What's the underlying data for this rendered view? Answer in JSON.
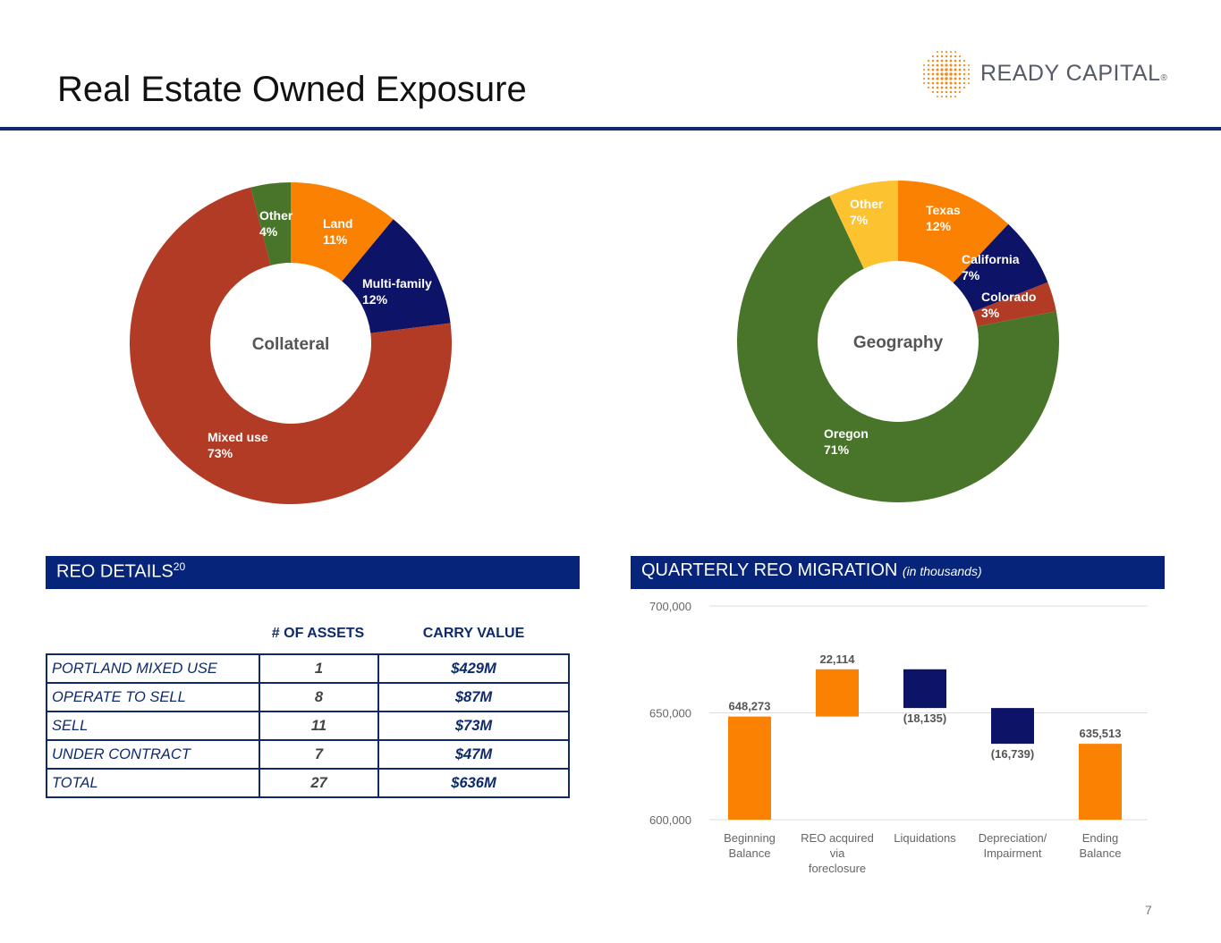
{
  "page": {
    "title": "Real Estate Owned Exposure",
    "page_number": "7"
  },
  "logo": {
    "text": "READY CAPITAL",
    "registered": "®"
  },
  "colors": {
    "orange": "#fb8103",
    "navy": "#0d1366",
    "red": "#b13b25",
    "green": "#49752a",
    "yellow": "#fdc22f",
    "header_blue": "#05247a"
  },
  "reo_details": {
    "heading": "REO DETAILS",
    "footnote": "20",
    "columns": [
      "# OF ASSETS",
      "CARRY VALUE"
    ],
    "rows": [
      {
        "label": "PORTLAND MIXED USE",
        "assets": "1",
        "value": "$429M"
      },
      {
        "label": "OPERATE TO SELL",
        "assets": "8",
        "value": "$87M"
      },
      {
        "label": "SELL",
        "assets": "11",
        "value": "$73M"
      },
      {
        "label": "UNDER CONTRACT",
        "assets": "7",
        "value": "$47M"
      },
      {
        "label": "TOTAL",
        "assets": "27",
        "value": "$636M"
      }
    ]
  },
  "migration": {
    "heading": "QUARTERLY REO MIGRATION",
    "subheading": "(in thousands)"
  },
  "chart_data": [
    {
      "type": "pie",
      "title": "Collateral",
      "slices": [
        {
          "label": "Land",
          "value": 11,
          "text": "11%",
          "color": "#fb8103"
        },
        {
          "label": "Multi-family",
          "value": 12,
          "text": "12%",
          "color": "#0d1366"
        },
        {
          "label": "Mixed use",
          "value": 73,
          "text": "73%",
          "color": "#b13b25"
        },
        {
          "label": "Other",
          "value": 4,
          "text": "4%",
          "color": "#49752a"
        }
      ]
    },
    {
      "type": "pie",
      "title": "Geography",
      "slices": [
        {
          "label": "Texas",
          "value": 12,
          "text": "12%",
          "color": "#fb8103"
        },
        {
          "label": "California",
          "value": 7,
          "text": "7%",
          "color": "#0d1366"
        },
        {
          "label": "Colorado",
          "value": 3,
          "text": "3%",
          "color": "#b13b25"
        },
        {
          "label": "Oregon",
          "value": 71,
          "text": "71%",
          "color": "#49752a"
        },
        {
          "label": "Other",
          "value": 7,
          "text": "7%",
          "color": "#fdc22f"
        }
      ]
    },
    {
      "type": "bar",
      "subtype": "waterfall",
      "title": "QUARTERLY REO MIGRATION (in thousands)",
      "ylim": [
        600000,
        700000
      ],
      "yticks": [
        600000,
        650000,
        700000
      ],
      "ytick_labels": [
        "600,000",
        "650,000",
        "700,000"
      ],
      "bars": [
        {
          "category": [
            "Beginning",
            "Balance"
          ],
          "start": 600000,
          "end": 648273,
          "label": "648,273",
          "color": "#fb8103"
        },
        {
          "category": [
            "REO acquired",
            "via",
            "foreclosure"
          ],
          "start": 648273,
          "end": 670387,
          "label": "22,114",
          "color": "#fb8103"
        },
        {
          "category": [
            "Liquidations"
          ],
          "start": 670387,
          "end": 652252,
          "label": "(18,135)",
          "color": "#0d1366"
        },
        {
          "category": [
            "Depreciation/",
            "Impairment"
          ],
          "start": 652252,
          "end": 635513,
          "label": "(16,739)",
          "color": "#0d1366"
        },
        {
          "category": [
            "Ending",
            "Balance"
          ],
          "start": 600000,
          "end": 635513,
          "label": "635,513",
          "color": "#fb8103"
        }
      ]
    }
  ]
}
